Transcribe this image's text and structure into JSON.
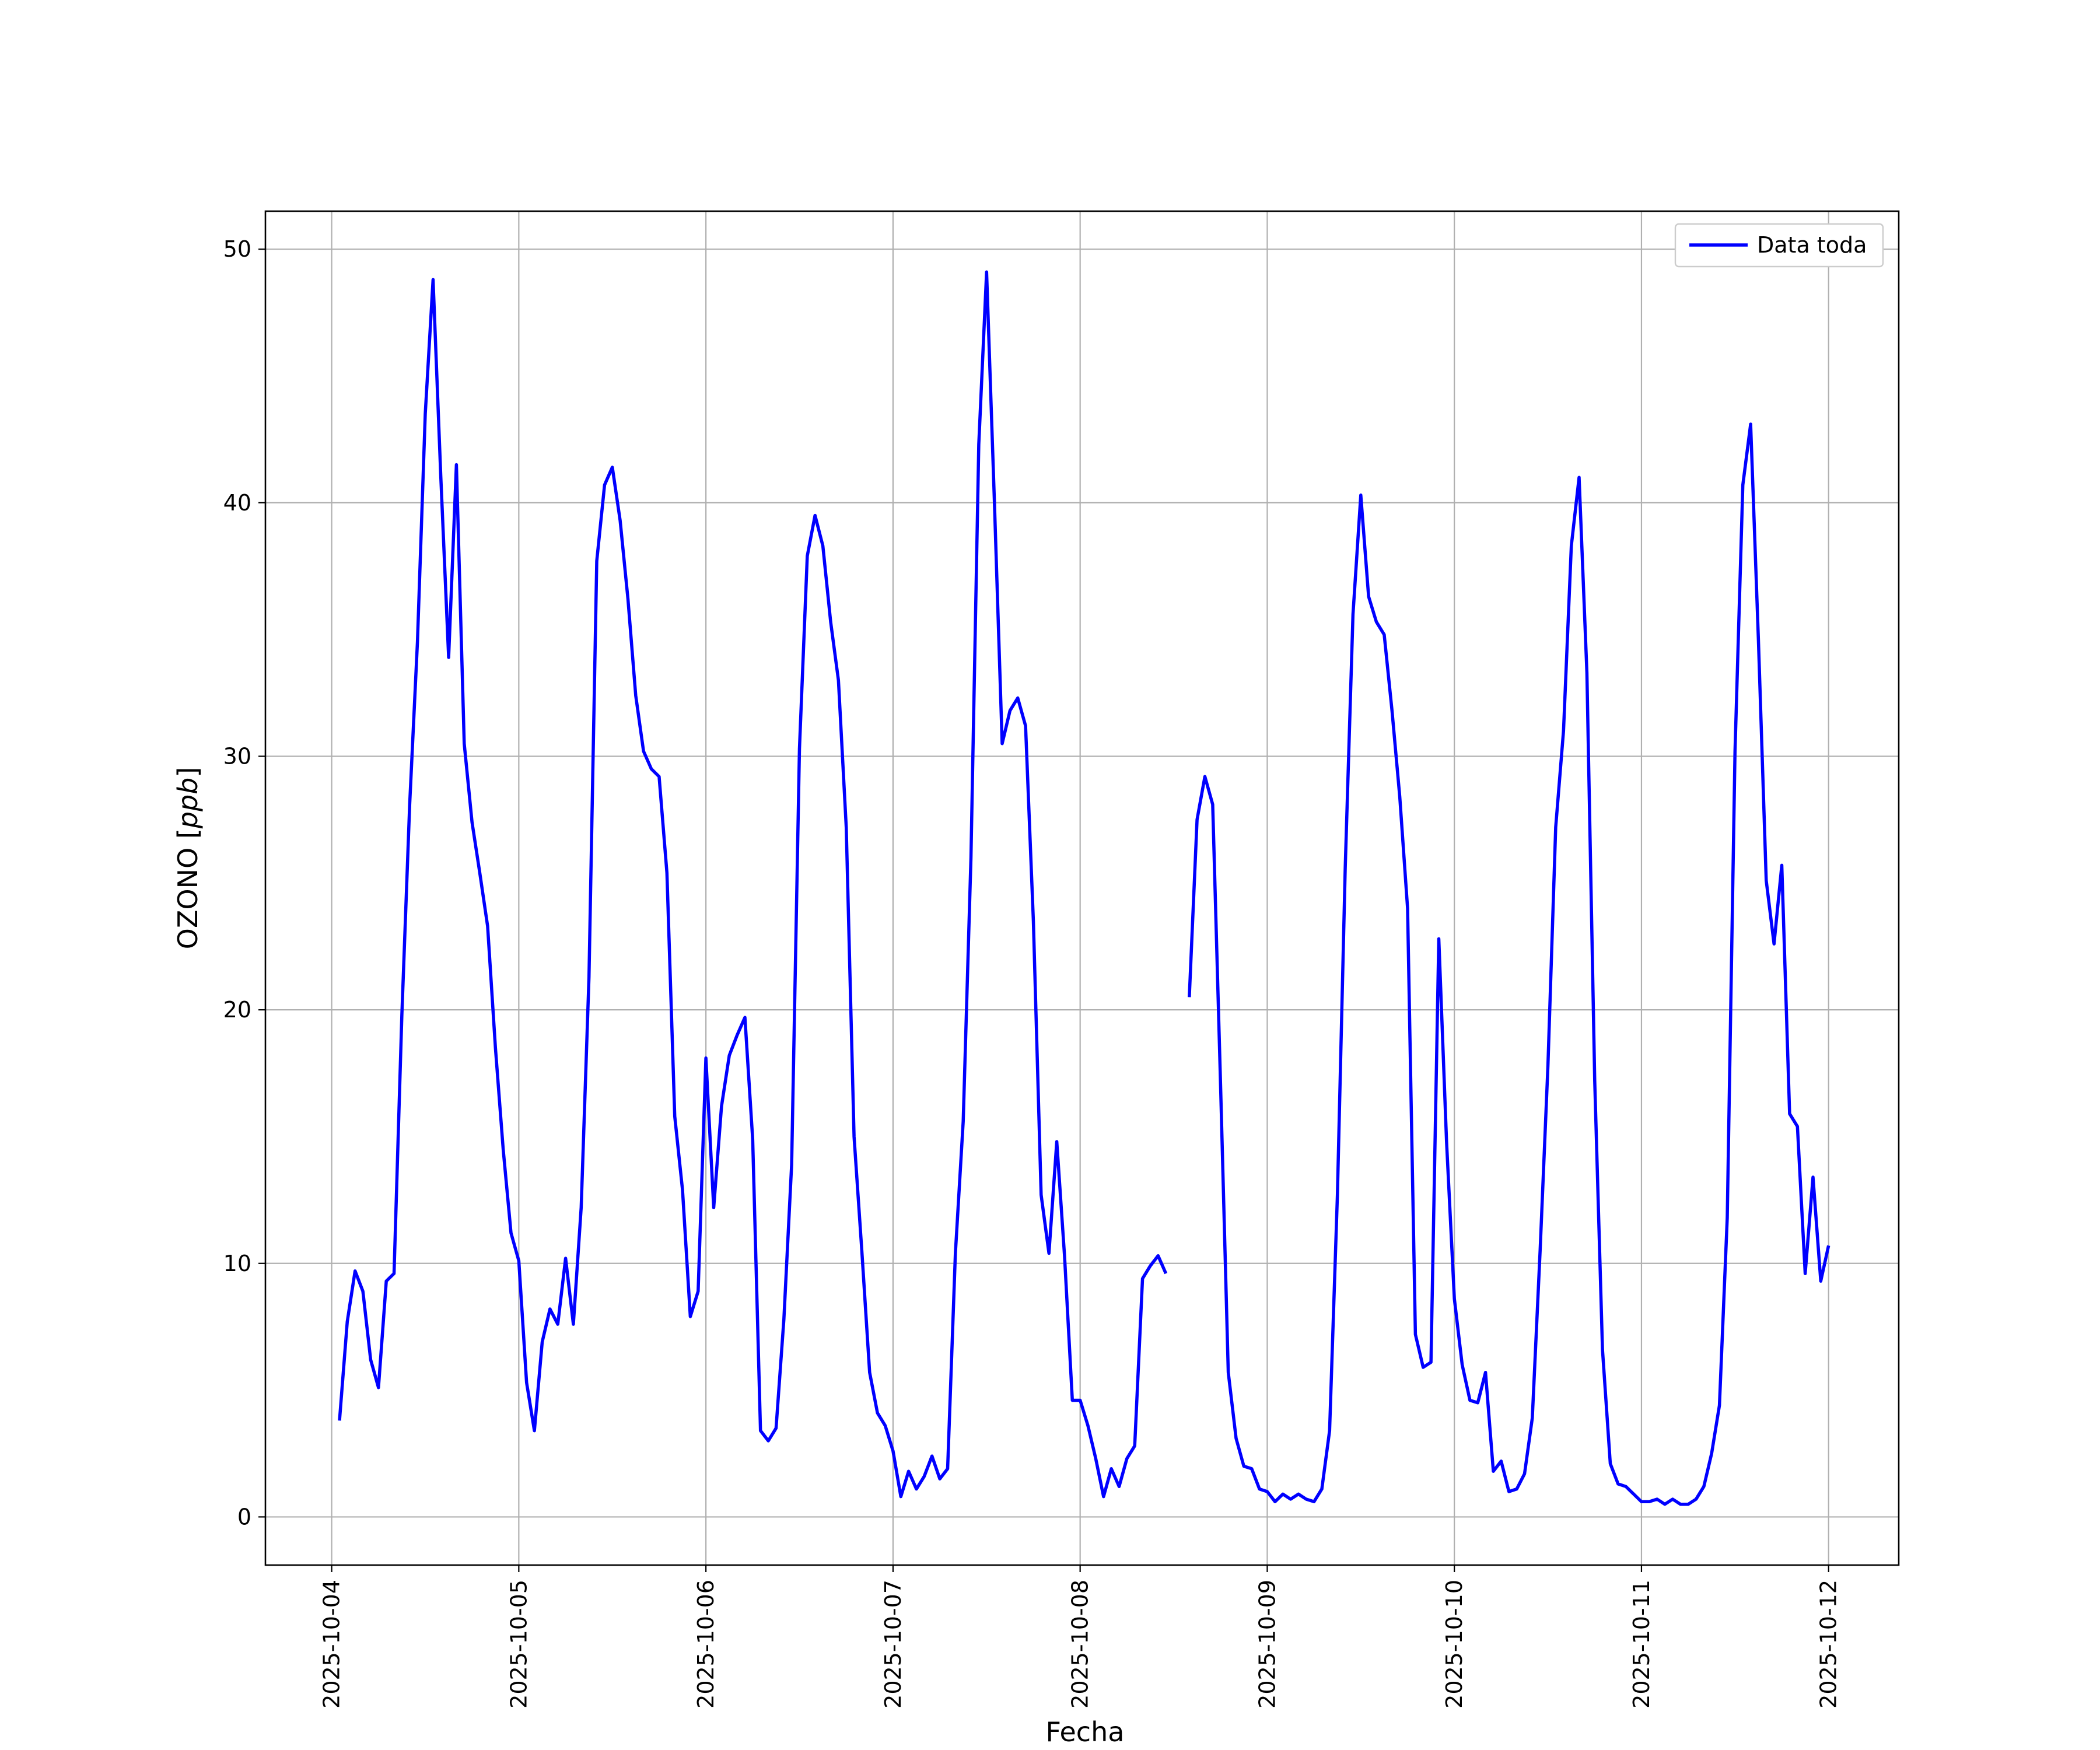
{
  "chart_data": {
    "type": "line",
    "title": "",
    "xlabel": "Fecha",
    "ylabel": {
      "main": "OZONO [",
      "unit": "ppb",
      "close": "]"
    },
    "x_tick_labels": [
      "2025-10-04",
      "2025-10-05",
      "2025-10-06",
      "2025-10-07",
      "2025-10-08",
      "2025-10-09",
      "2025-10-10",
      "2025-10-11",
      "2025-10-12"
    ],
    "y_ticks": [
      0,
      10,
      20,
      30,
      40,
      50
    ],
    "ylim": [
      -1.9,
      51.5
    ],
    "xlim": [
      "2025-10-03T15:30",
      "2025-10-12T09:00"
    ],
    "grid": true,
    "legend": {
      "position": "top-right"
    },
    "colors": {
      "series": "#0000ff",
      "grid": "#b0b0b0",
      "axis": "#000000"
    },
    "series": [
      {
        "name": "Data toda",
        "color": "#0000ff",
        "points": [
          [
            "2025-10-04T01:00",
            3.8
          ],
          [
            "2025-10-04T02:00",
            7.7
          ],
          [
            "2025-10-04T03:00",
            9.7
          ],
          [
            "2025-10-04T04:00",
            8.9
          ],
          [
            "2025-10-04T05:00",
            6.2
          ],
          [
            "2025-10-04T06:00",
            5.1
          ],
          [
            "2025-10-04T07:00",
            9.3
          ],
          [
            "2025-10-04T08:00",
            9.6
          ],
          [
            "2025-10-04T09:00",
            19.8
          ],
          [
            "2025-10-04T10:00",
            28.1
          ],
          [
            "2025-10-04T11:00",
            34.5
          ],
          [
            "2025-10-04T12:00",
            43.5
          ],
          [
            "2025-10-04T13:00",
            48.8
          ],
          [
            "2025-10-04T14:00",
            41.0
          ],
          [
            "2025-10-04T15:00",
            33.9
          ],
          [
            "2025-10-04T16:00",
            41.5
          ],
          [
            "2025-10-04T17:00",
            30.5
          ],
          [
            "2025-10-04T18:00",
            27.4
          ],
          [
            "2025-10-04T19:00",
            25.4
          ],
          [
            "2025-10-04T20:00",
            23.3
          ],
          [
            "2025-10-04T21:00",
            18.5
          ],
          [
            "2025-10-04T22:00",
            14.5
          ],
          [
            "2025-10-04T23:00",
            11.2
          ],
          [
            "2025-10-05T00:00",
            10.1
          ],
          [
            "2025-10-05T01:00",
            5.3
          ],
          [
            "2025-10-05T02:00",
            3.4
          ],
          [
            "2025-10-05T03:00",
            6.9
          ],
          [
            "2025-10-05T04:00",
            8.2
          ],
          [
            "2025-10-05T05:00",
            7.6
          ],
          [
            "2025-10-05T06:00",
            10.2
          ],
          [
            "2025-10-05T07:00",
            7.6
          ],
          [
            "2025-10-05T08:00",
            12.2
          ],
          [
            "2025-10-05T09:00",
            21.3
          ],
          [
            "2025-10-05T10:00",
            37.7
          ],
          [
            "2025-10-05T11:00",
            40.7
          ],
          [
            "2025-10-05T12:00",
            41.4
          ],
          [
            "2025-10-05T13:00",
            39.3
          ],
          [
            "2025-10-05T14:00",
            36.2
          ],
          [
            "2025-10-05T15:00",
            32.4
          ],
          [
            "2025-10-05T16:00",
            30.2
          ],
          [
            "2025-10-05T17:00",
            29.5
          ],
          [
            "2025-10-05T18:00",
            29.2
          ],
          [
            "2025-10-05T19:00",
            25.4
          ],
          [
            "2025-10-05T20:00",
            15.8
          ],
          [
            "2025-10-05T21:00",
            12.9
          ],
          [
            "2025-10-05T22:00",
            7.9
          ],
          [
            "2025-10-05T23:00",
            8.9
          ],
          [
            "2025-10-06T00:00",
            18.1
          ],
          [
            "2025-10-06T01:00",
            12.2
          ],
          [
            "2025-10-06T02:00",
            16.2
          ],
          [
            "2025-10-06T03:00",
            18.2
          ],
          [
            "2025-10-06T04:00",
            19.0
          ],
          [
            "2025-10-06T05:00",
            19.7
          ],
          [
            "2025-10-06T06:00",
            14.9
          ],
          [
            "2025-10-06T07:00",
            3.4
          ],
          [
            "2025-10-06T08:00",
            3.0
          ],
          [
            "2025-10-06T09:00",
            3.5
          ],
          [
            "2025-10-06T10:00",
            7.8
          ],
          [
            "2025-10-06T11:00",
            13.9
          ],
          [
            "2025-10-06T12:00",
            30.3
          ],
          [
            "2025-10-06T13:00",
            37.9
          ],
          [
            "2025-10-06T14:00",
            39.5
          ],
          [
            "2025-10-06T15:00",
            38.3
          ],
          [
            "2025-10-06T16:00",
            35.3
          ],
          [
            "2025-10-06T17:00",
            33.0
          ],
          [
            "2025-10-06T18:00",
            27.2
          ],
          [
            "2025-10-06T19:00",
            15.0
          ],
          [
            "2025-10-06T20:00",
            10.5
          ],
          [
            "2025-10-06T21:00",
            5.7
          ],
          [
            "2025-10-06T22:00",
            4.1
          ],
          [
            "2025-10-06T23:00",
            3.6
          ],
          [
            "2025-10-07T00:00",
            2.6
          ],
          [
            "2025-10-07T01:00",
            0.8
          ],
          [
            "2025-10-07T02:00",
            1.8
          ],
          [
            "2025-10-07T03:00",
            1.1
          ],
          [
            "2025-10-07T04:00",
            1.6
          ],
          [
            "2025-10-07T05:00",
            2.4
          ],
          [
            "2025-10-07T06:00",
            1.5
          ],
          [
            "2025-10-07T07:00",
            1.9
          ],
          [
            "2025-10-07T08:00",
            10.4
          ],
          [
            "2025-10-07T09:00",
            15.6
          ],
          [
            "2025-10-07T10:00",
            26.0
          ],
          [
            "2025-10-07T11:00",
            42.3
          ],
          [
            "2025-10-07T12:00",
            49.1
          ],
          [
            "2025-10-07T13:00",
            40.1
          ],
          [
            "2025-10-07T14:00",
            30.5
          ],
          [
            "2025-10-07T15:00",
            31.8
          ],
          [
            "2025-10-07T16:00",
            32.3
          ],
          [
            "2025-10-07T17:00",
            31.2
          ],
          [
            "2025-10-07T18:00",
            23.5
          ],
          [
            "2025-10-07T19:00",
            12.7
          ],
          [
            "2025-10-07T20:00",
            10.4
          ],
          [
            "2025-10-07T21:00",
            14.8
          ],
          [
            "2025-10-07T22:00",
            10.3
          ],
          [
            "2025-10-07T23:00",
            4.6
          ],
          [
            "2025-10-08T00:00",
            4.6
          ],
          [
            "2025-10-08T01:00",
            3.6
          ],
          [
            "2025-10-08T02:00",
            2.3
          ],
          [
            "2025-10-08T03:00",
            0.8
          ],
          [
            "2025-10-08T04:00",
            1.9
          ],
          [
            "2025-10-08T05:00",
            1.2
          ],
          [
            "2025-10-08T06:00",
            2.3
          ],
          [
            "2025-10-08T07:00",
            2.8
          ],
          [
            "2025-10-08T08:00",
            9.4
          ],
          [
            "2025-10-08T09:00",
            9.9
          ],
          [
            "2025-10-08T10:00",
            10.3
          ],
          [
            "2025-10-08T11:00",
            9.6
          ],
          null,
          [
            "2025-10-08T14:00",
            20.5
          ],
          [
            "2025-10-08T15:00",
            27.5
          ],
          [
            "2025-10-08T16:00",
            29.2
          ],
          [
            "2025-10-08T17:00",
            28.1
          ],
          [
            "2025-10-08T18:00",
            17.2
          ],
          [
            "2025-10-08T19:00",
            5.7
          ],
          [
            "2025-10-08T20:00",
            3.1
          ],
          [
            "2025-10-08T21:00",
            2.0
          ],
          [
            "2025-10-08T22:00",
            1.9
          ],
          [
            "2025-10-08T23:00",
            1.1
          ],
          [
            "2025-10-09T00:00",
            1.0
          ],
          [
            "2025-10-09T01:00",
            0.6
          ],
          [
            "2025-10-09T02:00",
            0.9
          ],
          [
            "2025-10-09T03:00",
            0.7
          ],
          [
            "2025-10-09T04:00",
            0.9
          ],
          [
            "2025-10-09T05:00",
            0.7
          ],
          [
            "2025-10-09T06:00",
            0.6
          ],
          [
            "2025-10-09T07:00",
            1.1
          ],
          [
            "2025-10-09T08:00",
            3.4
          ],
          [
            "2025-10-09T09:00",
            12.7
          ],
          [
            "2025-10-09T10:00",
            25.6
          ],
          [
            "2025-10-09T11:00",
            35.6
          ],
          [
            "2025-10-09T12:00",
            40.3
          ],
          [
            "2025-10-09T13:00",
            36.3
          ],
          [
            "2025-10-09T14:00",
            35.3
          ],
          [
            "2025-10-09T15:00",
            34.8
          ],
          [
            "2025-10-09T16:00",
            31.8
          ],
          [
            "2025-10-09T17:00",
            28.4
          ],
          [
            "2025-10-09T18:00",
            24.0
          ],
          [
            "2025-10-09T19:00",
            7.2
          ],
          [
            "2025-10-09T20:00",
            5.9
          ],
          [
            "2025-10-09T21:00",
            6.1
          ],
          [
            "2025-10-09T22:00",
            22.8
          ],
          [
            "2025-10-09T23:00",
            14.8
          ],
          [
            "2025-10-10T00:00",
            8.6
          ],
          [
            "2025-10-10T01:00",
            6.0
          ],
          [
            "2025-10-10T02:00",
            4.6
          ],
          [
            "2025-10-10T03:00",
            4.5
          ],
          [
            "2025-10-10T04:00",
            5.7
          ],
          [
            "2025-10-10T05:00",
            1.8
          ],
          [
            "2025-10-10T06:00",
            2.2
          ],
          [
            "2025-10-10T07:00",
            1.0
          ],
          [
            "2025-10-10T08:00",
            1.1
          ],
          [
            "2025-10-10T09:00",
            1.7
          ],
          [
            "2025-10-10T10:00",
            3.9
          ],
          [
            "2025-10-10T11:00",
            10.5
          ],
          [
            "2025-10-10T12:00",
            17.8
          ],
          [
            "2025-10-10T13:00",
            27.2
          ],
          [
            "2025-10-10T14:00",
            31.0
          ],
          [
            "2025-10-10T15:00",
            38.3
          ],
          [
            "2025-10-10T16:00",
            41.0
          ],
          [
            "2025-10-10T17:00",
            33.3
          ],
          [
            "2025-10-10T18:00",
            17.2
          ],
          [
            "2025-10-10T19:00",
            6.6
          ],
          [
            "2025-10-10T20:00",
            2.1
          ],
          [
            "2025-10-10T21:00",
            1.3
          ],
          [
            "2025-10-10T22:00",
            1.2
          ],
          [
            "2025-10-10T23:00",
            0.9
          ],
          [
            "2025-10-11T00:00",
            0.6
          ],
          [
            "2025-10-11T01:00",
            0.6
          ],
          [
            "2025-10-11T02:00",
            0.7
          ],
          [
            "2025-10-11T03:00",
            0.5
          ],
          [
            "2025-10-11T04:00",
            0.7
          ],
          [
            "2025-10-11T05:00",
            0.5
          ],
          [
            "2025-10-11T06:00",
            0.5
          ],
          [
            "2025-10-11T07:00",
            0.7
          ],
          [
            "2025-10-11T08:00",
            1.2
          ],
          [
            "2025-10-11T09:00",
            2.5
          ],
          [
            "2025-10-11T10:00",
            4.4
          ],
          [
            "2025-10-11T11:00",
            11.8
          ],
          [
            "2025-10-11T12:00",
            30.2
          ],
          [
            "2025-10-11T13:00",
            40.7
          ],
          [
            "2025-10-11T14:00",
            43.1
          ],
          [
            "2025-10-11T15:00",
            34.6
          ],
          [
            "2025-10-11T16:00",
            25.1
          ],
          [
            "2025-10-11T17:00",
            22.6
          ],
          [
            "2025-10-11T18:00",
            25.7
          ],
          [
            "2025-10-11T19:00",
            15.9
          ],
          [
            "2025-10-11T20:00",
            15.4
          ],
          [
            "2025-10-11T21:00",
            9.6
          ],
          [
            "2025-10-11T22:00",
            13.4
          ],
          [
            "2025-10-11T23:00",
            9.3
          ],
          [
            "2025-10-12T00:00",
            10.7
          ]
        ]
      }
    ]
  }
}
